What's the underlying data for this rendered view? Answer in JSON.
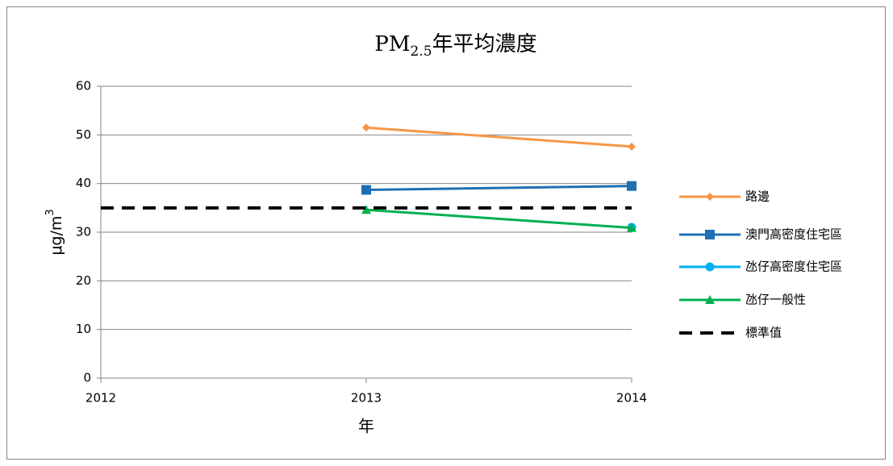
{
  "chart_data": {
    "type": "line",
    "title": [
      "PM",
      "2.5",
      "年平均濃度"
    ],
    "xlabel": "年",
    "ylabel": [
      "μg/m",
      "3"
    ],
    "xlim": [
      2012,
      2014
    ],
    "xticks": [
      2012,
      2013,
      2014
    ],
    "ylim": [
      0,
      60
    ],
    "yticks": [
      0,
      10,
      20,
      30,
      40,
      50,
      60
    ],
    "grid": true,
    "legend": "right",
    "series": [
      {
        "name": "路邊",
        "color": "#f79646",
        "marker": "diamond",
        "x": [
          2013,
          2014
        ],
        "values": [
          51.5,
          47.6
        ]
      },
      {
        "name": "澳門高密度住宅區",
        "color": "#1f6fb4",
        "marker": "square",
        "x": [
          2013,
          2014
        ],
        "values": [
          38.7,
          39.5
        ]
      },
      {
        "name": "氹仔高密度住宅區",
        "color": "#00b0f0",
        "marker": "circle",
        "x": [
          2013,
          2014
        ],
        "values": [
          null,
          31
        ]
      },
      {
        "name": "氹仔一般性",
        "color": "#00b050",
        "marker": "triangle",
        "x": [
          2013,
          2014
        ],
        "values": [
          34.6,
          30.9
        ]
      },
      {
        "name": "標準值",
        "color": "#000000",
        "marker": "none",
        "dash": true,
        "x": [
          2012,
          2014
        ],
        "values": [
          35,
          35
        ]
      }
    ]
  }
}
